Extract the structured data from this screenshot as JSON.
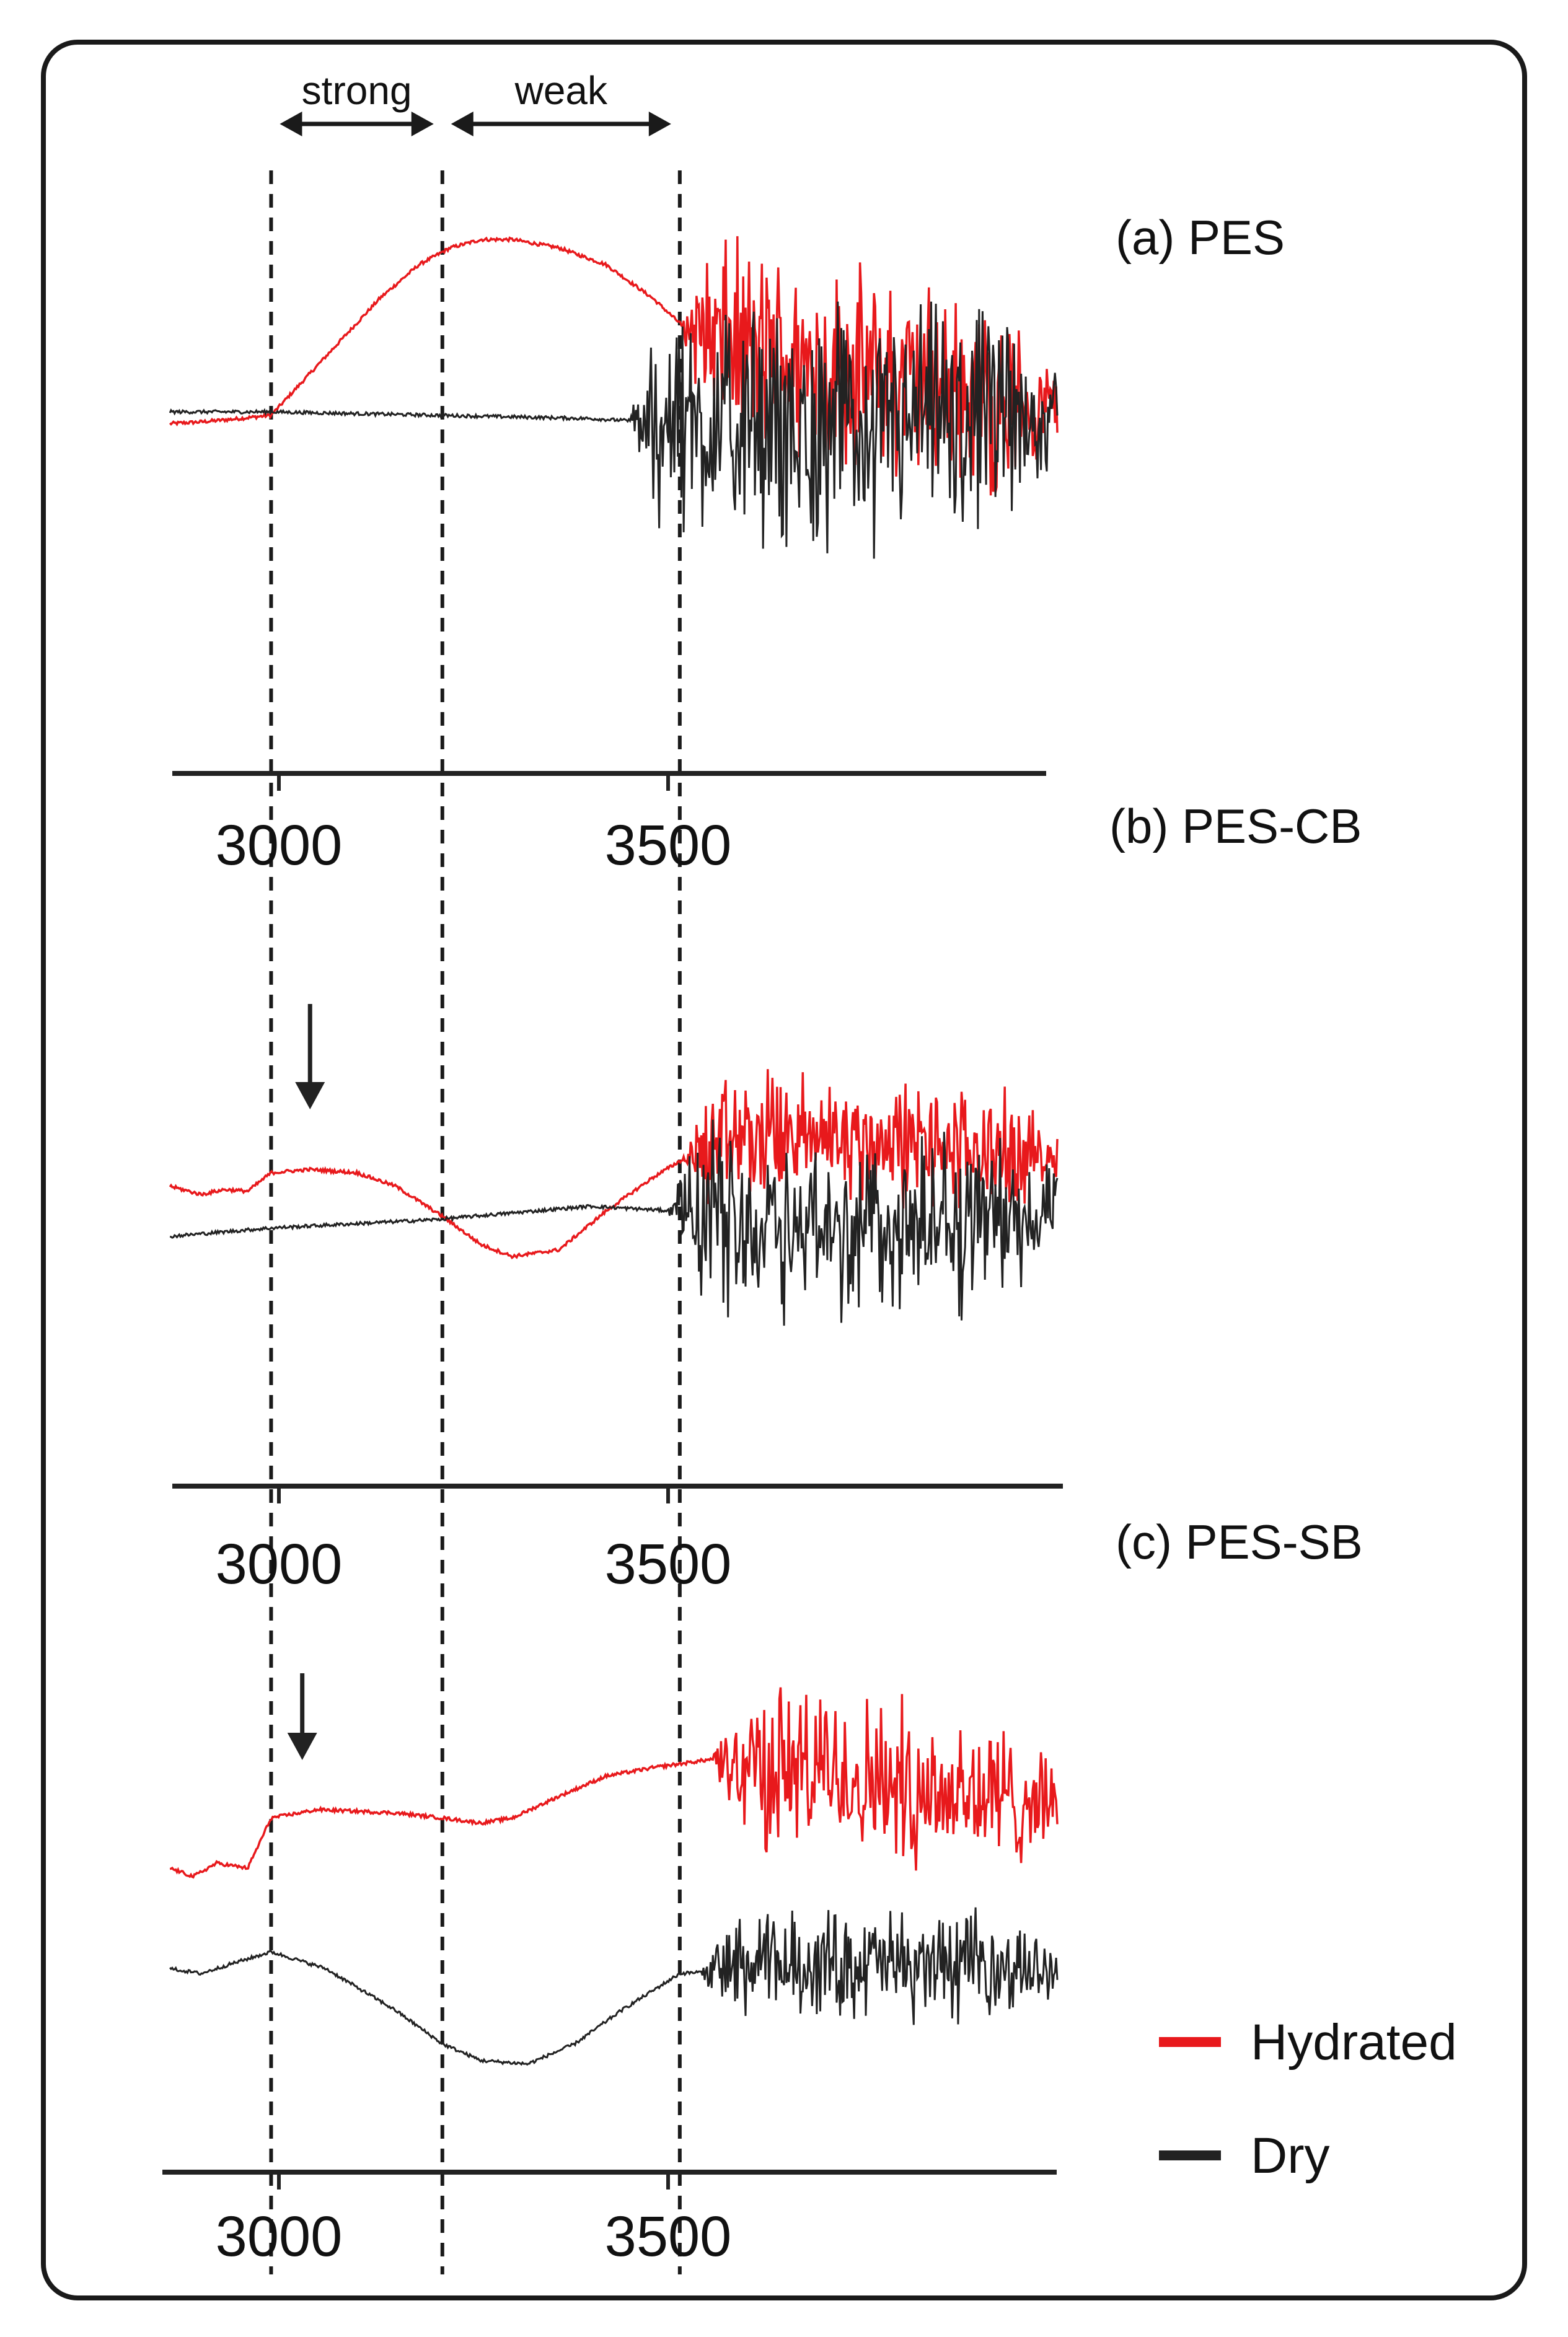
{
  "chart_data": {
    "type": "line",
    "xlabel": "",
    "ylabel": "",
    "x_range": [
      2860,
      4000
    ],
    "regions": [
      {
        "label": "strong",
        "from": 2990,
        "to": 3210
      },
      {
        "label": "weak",
        "from": 3210,
        "to": 3515
      }
    ],
    "reference_lines": [
      2990,
      3210,
      3515
    ],
    "legend": [
      {
        "name": "Hydrated",
        "color": "#e8191c"
      },
      {
        "name": "Dry",
        "color": "#222222"
      }
    ],
    "panels": [
      {
        "label": "(a) PES",
        "x_ticks": [
          3000,
          3500
        ],
        "tick_labels": [
          "3000",
          "3500"
        ],
        "annotation_arrow_at": null,
        "series": [
          {
            "name": "Hydrated",
            "noise_start": 3515,
            "noise_amplitude": 0.55,
            "x": [
              2860,
              2900,
              2950,
              2990,
              3030,
              3080,
              3130,
              3180,
              3220,
              3260,
              3300,
              3360,
              3420,
              3480,
              3515,
              3600,
              3700,
              3800,
              3900,
              4000
            ],
            "y": [
              -0.05,
              -0.04,
              -0.02,
              0.0,
              0.2,
              0.45,
              0.7,
              0.9,
              1.0,
              1.05,
              1.05,
              1.0,
              0.9,
              0.7,
              0.55,
              0.4,
              0.3,
              0.2,
              0.1,
              0.05
            ]
          },
          {
            "name": "Dry",
            "noise_start": 3450,
            "noise_amplitude": 0.65,
            "x": [
              2860,
              2990,
              3200,
              3400,
              3515,
              3600,
              3700,
              3800,
              3900,
              4000
            ],
            "y": [
              0.02,
              0.02,
              0.0,
              -0.02,
              -0.05,
              -0.08,
              -0.1,
              -0.08,
              -0.05,
              0.0
            ]
          }
        ]
      },
      {
        "label": "(b) PES-CB",
        "x_ticks": [
          3000,
          3500
        ],
        "tick_labels": [
          "3000",
          "3500"
        ],
        "annotation_arrow_at": 3040,
        "series": [
          {
            "name": "Hydrated",
            "noise_start": 3515,
            "noise_amplitude": 0.35,
            "x": [
              2860,
              2900,
              2930,
              2960,
              2990,
              3040,
              3100,
              3150,
              3210,
              3260,
              3300,
              3360,
              3420,
              3480,
              3515,
              3600,
              3700,
              3800,
              3900,
              4000
            ],
            "y": [
              0.2,
              0.15,
              0.18,
              0.17,
              0.28,
              0.3,
              0.28,
              0.2,
              0.02,
              -0.15,
              -0.22,
              -0.18,
              0.05,
              0.25,
              0.35,
              0.5,
              0.5,
              0.45,
              0.4,
              0.38
            ]
          },
          {
            "name": "Dry",
            "noise_start": 3500,
            "noise_amplitude": 0.5,
            "x": [
              2860,
              2990,
              3200,
              3400,
              3515,
              3600,
              3700,
              3800,
              3900,
              4000
            ],
            "y": [
              -0.1,
              -0.05,
              0.0,
              0.08,
              0.05,
              0.0,
              -0.05,
              -0.05,
              0.0,
              0.05
            ]
          }
        ]
      },
      {
        "label": "(c) PES-SB",
        "x_ticks": [
          3000,
          3500
        ],
        "tick_labels": [
          "3000",
          "3500"
        ],
        "annotation_arrow_at": 3030,
        "series": [
          {
            "name": "Hydrated",
            "noise_start": 3555,
            "noise_amplitude": 0.45,
            "x": [
              2860,
              2890,
              2920,
              2960,
              2990,
              3050,
              3150,
              3210,
              3260,
              3300,
              3360,
              3420,
              3480,
              3555,
              3650,
              3750,
              3850,
              3950,
              4000
            ],
            "y": [
              0.15,
              0.1,
              0.18,
              0.15,
              0.45,
              0.5,
              0.48,
              0.45,
              0.42,
              0.45,
              0.58,
              0.7,
              0.75,
              0.8,
              0.75,
              0.7,
              0.62,
              0.55,
              0.55
            ]
          },
          {
            "name": "Dry",
            "noise_start": 3540,
            "noise_amplitude": 0.3,
            "x": [
              2860,
              2900,
              2940,
              2990,
              3060,
              3150,
              3210,
              3260,
              3320,
              3380,
              3440,
              3515,
              3600,
              3700,
              3800,
              3900,
              4000
            ],
            "y": [
              -0.45,
              -0.48,
              -0.42,
              -0.35,
              -0.45,
              -0.7,
              -0.9,
              -1.0,
              -1.02,
              -0.9,
              -0.7,
              -0.48,
              -0.45,
              -0.42,
              -0.42,
              -0.45,
              -0.45
            ]
          }
        ]
      }
    ]
  }
}
